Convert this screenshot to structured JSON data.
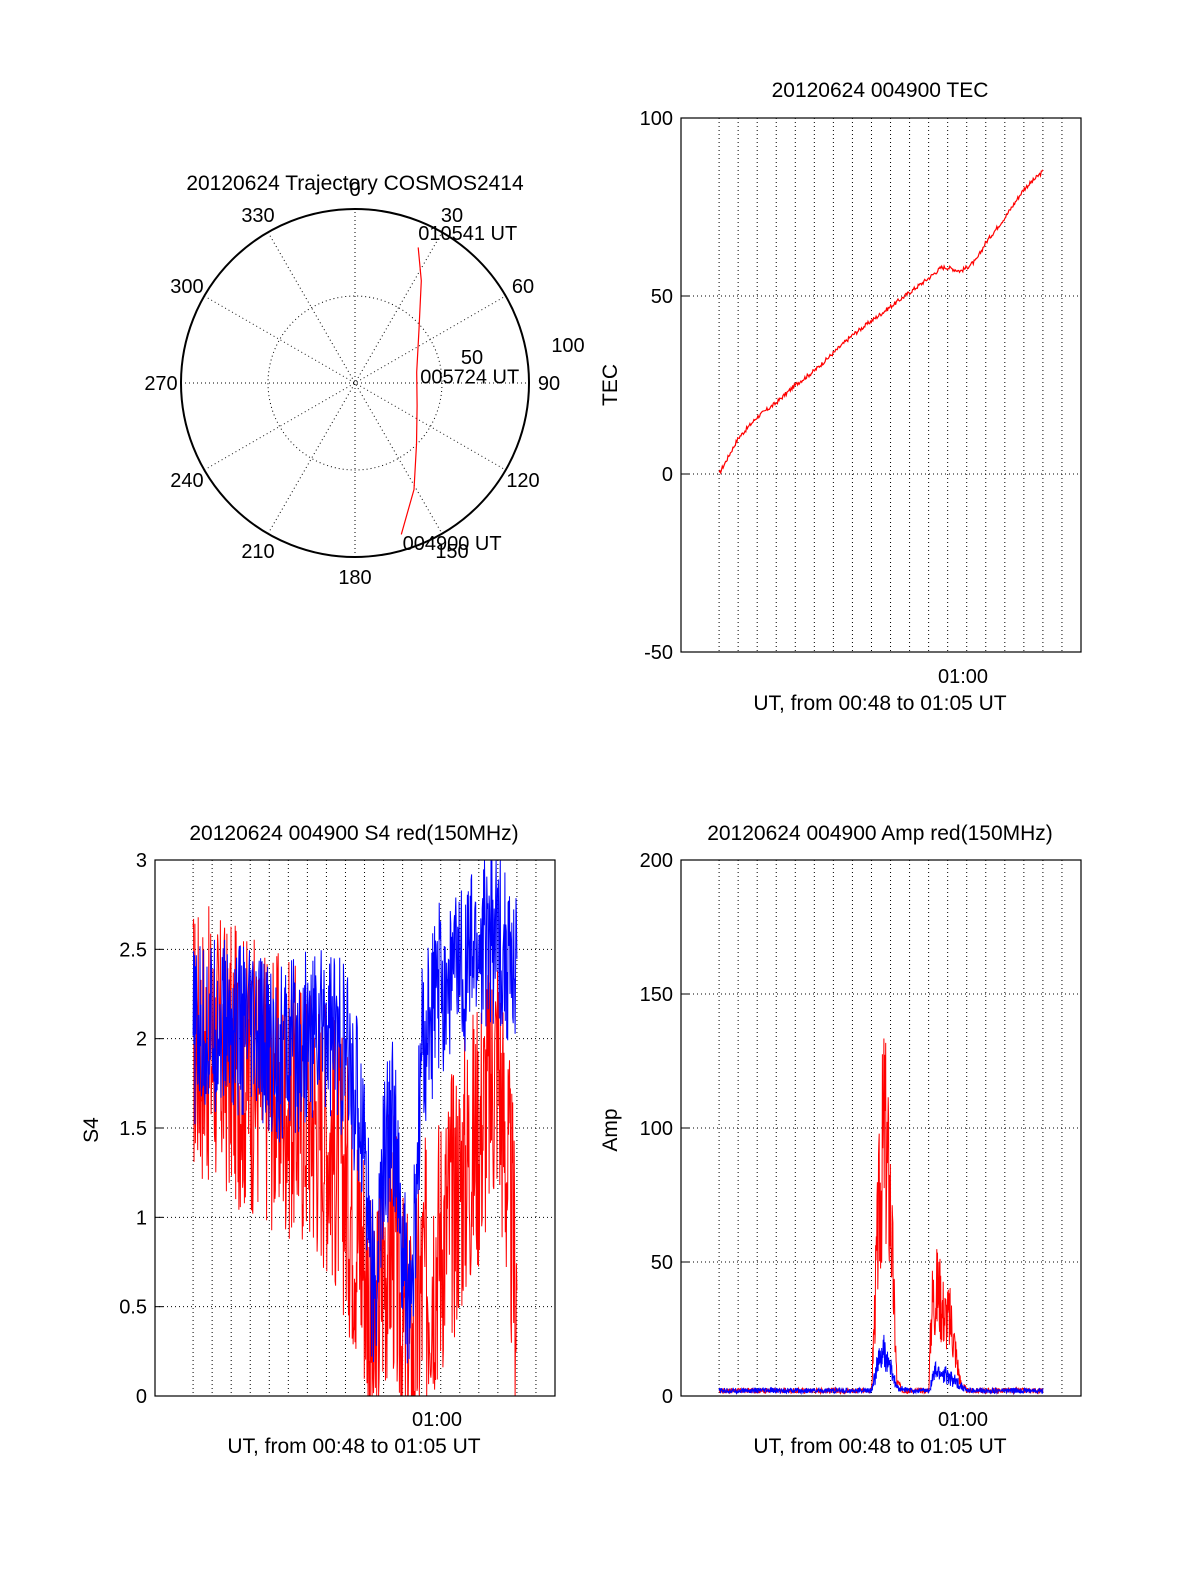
{
  "colors": {
    "red": "#ff0000",
    "blue": "#0000ff",
    "axis": "#000000"
  },
  "chart_data": [
    {
      "id": "trajectory",
      "type": "polar",
      "title": "20120624 Trajectory COSMOS2414",
      "azimuth_labels": [
        "0",
        "30",
        "60",
        "90",
        "120",
        "150",
        "180",
        "210",
        "240",
        "270",
        "300",
        "330"
      ],
      "radius_labels": [
        "50",
        "100"
      ],
      "rlim": [
        0,
        100
      ],
      "track": {
        "color": "red",
        "points": [
          {
            "az": 163,
            "r": 91
          },
          {
            "az": 151,
            "r": 70
          },
          {
            "az": 135,
            "r": 50
          },
          {
            "az": 110,
            "r": 38
          },
          {
            "az": 80,
            "r": 36
          },
          {
            "az": 50,
            "r": 48
          },
          {
            "az": 33,
            "r": 70
          },
          {
            "az": 25,
            "r": 86
          }
        ]
      },
      "annotations": [
        {
          "text": "010541 UT",
          "az": 24,
          "r": 95
        },
        {
          "text": "005724 UT",
          "az": 84,
          "r": 40
        },
        {
          "text": "004900 UT",
          "az": 162,
          "r": 96
        }
      ]
    },
    {
      "id": "tec",
      "type": "line",
      "title": "20120624 004900 TEC",
      "xlabel": "UT, from 00:48 to 01:05 UT",
      "ylabel": "TEC",
      "xlim": [
        "00:46",
        "01:07"
      ],
      "ylim": [
        -50,
        100
      ],
      "yticks": [
        "-50",
        "0",
        "50",
        "100"
      ],
      "xtick_label": "01:00",
      "series": [
        {
          "color": "red",
          "x": [
            "00:48:00",
            "00:49:00",
            "00:50:00",
            "00:51:00",
            "00:52:00",
            "00:53:00",
            "00:54:00",
            "00:55:00",
            "00:56:00",
            "00:57:00",
            "00:58:00",
            "00:59:00",
            "00:59:40",
            "01:00:00",
            "01:00:40",
            "01:01:00",
            "01:01:30",
            "01:02:00",
            "01:03:00",
            "01:04:00",
            "01:05:00"
          ],
          "y": [
            0,
            10,
            16,
            20,
            25,
            29,
            34,
            39,
            43,
            47,
            51,
            55,
            58,
            58,
            57,
            58,
            60,
            65,
            72,
            80,
            85
          ]
        }
      ]
    },
    {
      "id": "s4",
      "type": "line",
      "title": "20120624 004900 S4 red(150MHz)",
      "xlabel": "UT, from 00:48 to 01:05 UT",
      "ylabel": "S4",
      "xlim": [
        "00:46",
        "01:07"
      ],
      "ylim": [
        0,
        3
      ],
      "yticks": [
        "0",
        "0.5",
        "1",
        "1.5",
        "2",
        "2.5",
        "3"
      ],
      "xtick_label": "01:00",
      "series": [
        {
          "color": "red",
          "x": [
            "00:48:00",
            "00:49:30",
            "00:51:00",
            "00:52:30",
            "00:54:00",
            "00:55:00",
            "00:56:00",
            "00:57:00",
            "00:57:30",
            "00:58:00",
            "00:58:30",
            "00:59:00",
            "00:59:30",
            "01:00:00",
            "01:01:00",
            "01:02:00",
            "01:03:00",
            "01:04:00",
            "01:05:00"
          ],
          "y": [
            2.0,
            1.9,
            1.8,
            1.7,
            1.6,
            1.5,
            1.2,
            0.8,
            0.15,
            0.8,
            0.9,
            0.35,
            0.2,
            0.6,
            0.9,
            1.2,
            1.5,
            1.9,
            0.6
          ]
        },
        {
          "color": "blue",
          "x": [
            "00:48:00",
            "00:49:30",
            "00:51:00",
            "00:52:30",
            "00:54:00",
            "00:55:00",
            "00:56:00",
            "00:57:00",
            "00:57:30",
            "00:58:00",
            "00:58:30",
            "00:59:00",
            "00:59:30",
            "01:00:00",
            "01:01:00",
            "01:02:00",
            "01:03:00",
            "01:04:00",
            "01:05:00"
          ],
          "y": [
            2.0,
            2.1,
            2.0,
            1.9,
            2.0,
            2.1,
            1.9,
            1.5,
            0.45,
            1.3,
            1.6,
            0.7,
            0.5,
            1.9,
            2.3,
            2.4,
            2.5,
            2.6,
            2.3
          ]
        }
      ]
    },
    {
      "id": "amp",
      "type": "line",
      "title": "20120624 004900 Amp red(150MHz)",
      "xlabel": "UT, from 00:48 to 01:05 UT",
      "ylabel": "Amp",
      "xlim": [
        "00:46",
        "01:07"
      ],
      "ylim": [
        0,
        200
      ],
      "yticks": [
        "0",
        "50",
        "100",
        "150",
        "200"
      ],
      "xtick_label": "01:00",
      "series": [
        {
          "color": "red",
          "x": [
            "00:48:00",
            "00:52:00",
            "00:56:00",
            "00:56:20",
            "00:56:40",
            "00:57:00",
            "00:57:20",
            "00:57:40",
            "00:58:00",
            "00:59:00",
            "00:59:10",
            "00:59:30",
            "00:59:50",
            "01:00:10",
            "01:00:40",
            "01:01:00",
            "01:05:00"
          ],
          "y": [
            2,
            2,
            2,
            60,
            100,
            70,
            5,
            2,
            2,
            2,
            35,
            40,
            30,
            28,
            5,
            2,
            2
          ]
        },
        {
          "color": "blue",
          "x": [
            "00:48:00",
            "00:52:00",
            "00:56:00",
            "00:56:20",
            "00:56:40",
            "00:57:00",
            "00:57:20",
            "00:58:00",
            "00:59:00",
            "00:59:20",
            "00:59:50",
            "01:00:30",
            "01:01:00",
            "01:05:00"
          ],
          "y": [
            2,
            2,
            2,
            12,
            16,
            10,
            3,
            2,
            2,
            9,
            8,
            5,
            2,
            2
          ]
        }
      ]
    }
  ]
}
